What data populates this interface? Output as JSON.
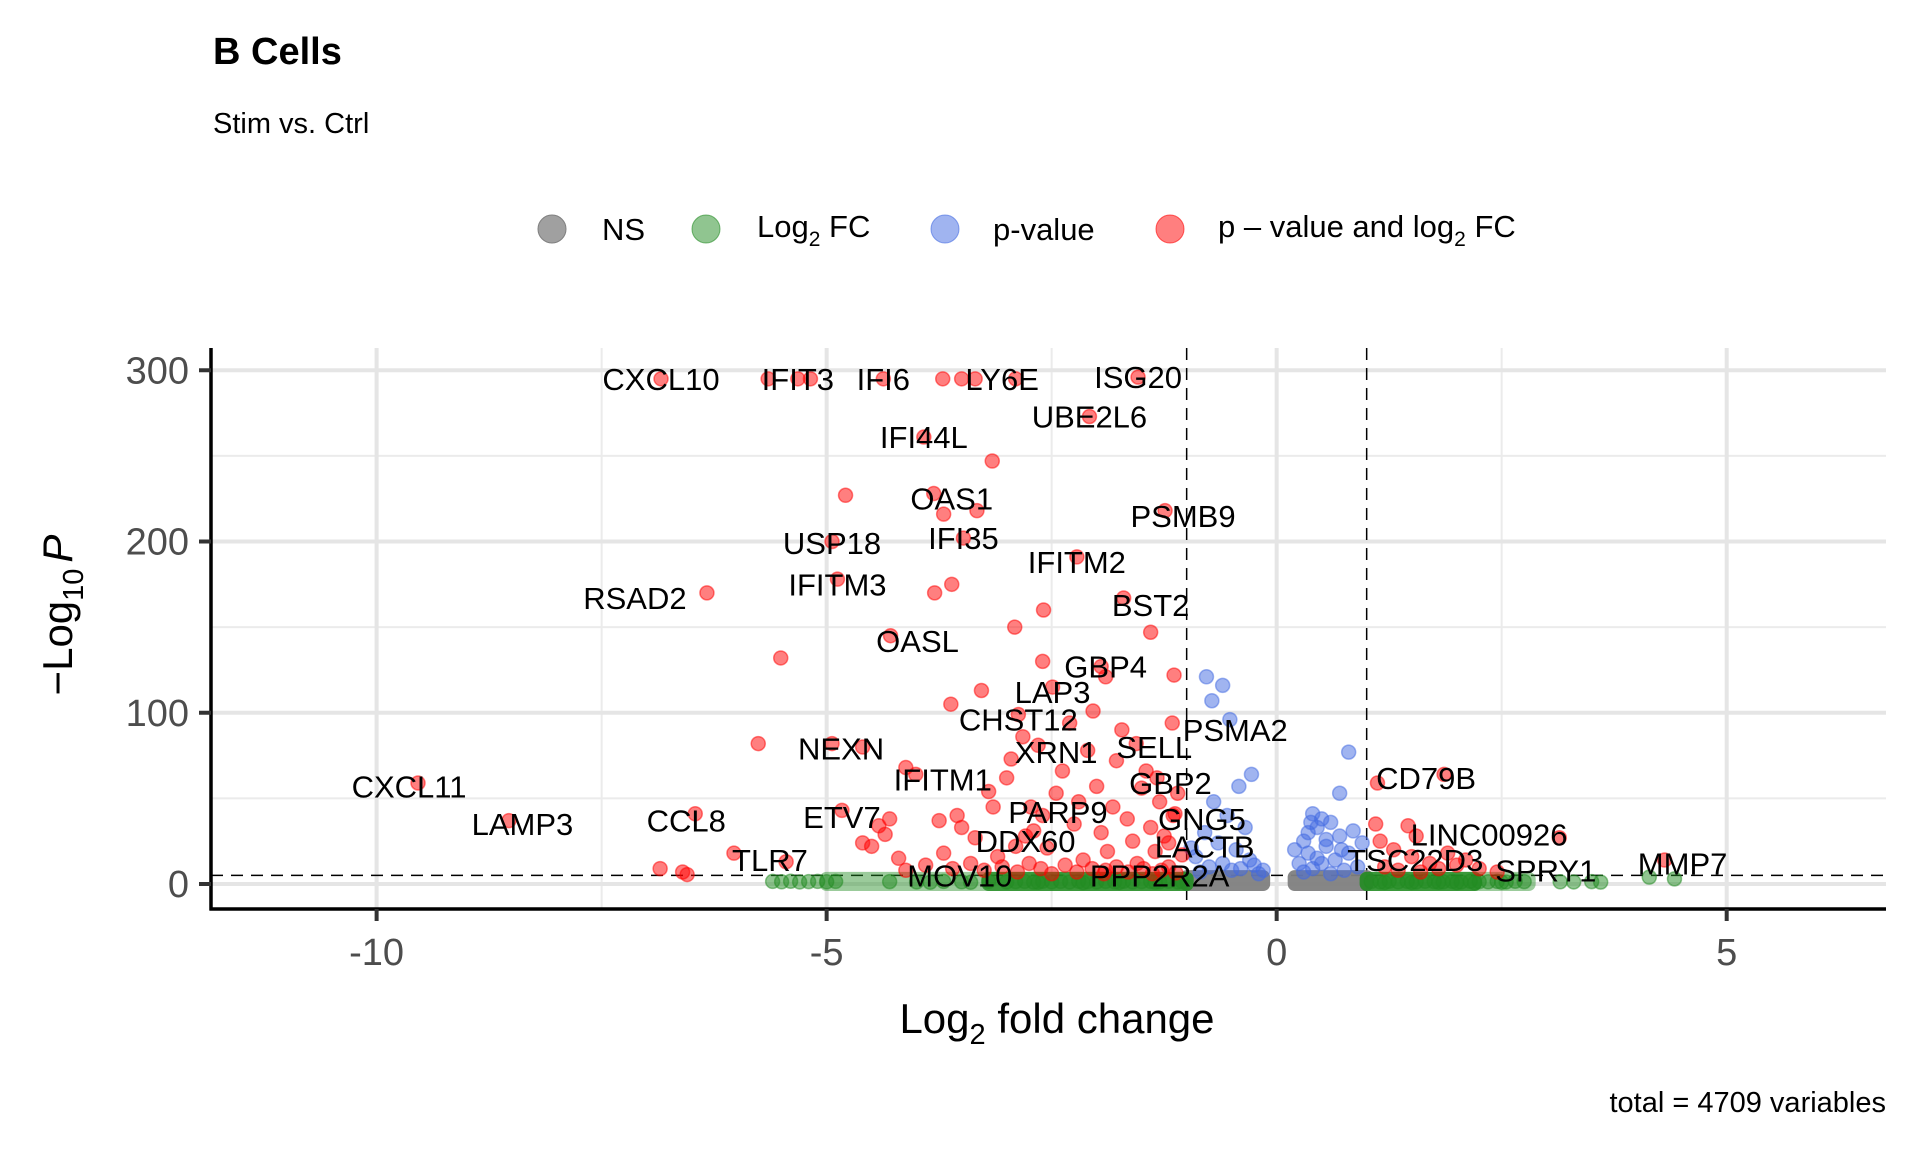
{
  "chart_data": {
    "type": "scatter",
    "title": "B Cells",
    "subtitle": "Stim vs. Ctrl",
    "caption": "total = 4709 variables",
    "xlabel": {
      "base": "Log",
      "sub": "2",
      "rest": " fold change"
    },
    "ylabel": {
      "prefix": "−Log",
      "sub": "10",
      "italic": "P"
    },
    "xlim": [
      -11.84,
      6.77
    ],
    "ylim": [
      -14.6,
      313
    ],
    "x_ticks": [
      -10,
      -5,
      0,
      5
    ],
    "x_tick_labels": [
      "-10",
      "-5",
      "0",
      "5"
    ],
    "y_ticks": [
      0,
      100,
      200,
      300
    ],
    "y_tick_labels": [
      "0",
      "100",
      "200",
      "300"
    ],
    "x_minor_grid": [
      -7.5,
      -2.5,
      2.5
    ],
    "y_minor_grid": [
      50,
      150,
      250
    ],
    "grid": true,
    "cutoffs": {
      "log2fc": [
        -1,
        1
      ],
      "neg_log10_p": 5
    },
    "legend_position": "top",
    "legend": [
      {
        "key": "NS",
        "label": "NS",
        "color": "#808080"
      },
      {
        "key": "FC",
        "label_base": "Log",
        "label_sub": "2",
        "label_rest": " FC",
        "color": "#228B22"
      },
      {
        "key": "P",
        "label": "p-value",
        "color": "#4169E1"
      },
      {
        "key": "FC_P",
        "label_pre": "p – value and log",
        "label_sub": "2",
        "label_rest": " FC",
        "color": "#FF0000"
      }
    ],
    "colors": {
      "NS": "#808080",
      "FC": "#228B22",
      "P": "#4169E1",
      "FC_P": "#FF0000"
    },
    "labeled_points": [
      {
        "gene": "CXCL10",
        "x": -6.84,
        "y": 295,
        "dx": 0,
        "dy": 0
      },
      {
        "gene": "IFIT3",
        "x": -5.32,
        "y": 295
      },
      {
        "gene": "IFI6",
        "x": -4.37,
        "y": 295
      },
      {
        "gene": "LY6E",
        "x": -3.35,
        "y": 295
      },
      {
        "gene": "ISG20",
        "x": -1.54,
        "y": 296
      },
      {
        "gene": "UBE2L6",
        "x": -2.08,
        "y": 273
      },
      {
        "gene": "IFI44L",
        "x": -3.92,
        "y": 261
      },
      {
        "gene": "OAS1",
        "x": -3.81,
        "y": 228
      },
      {
        "gene": "PSMB9",
        "x": -1.24,
        "y": 218
      },
      {
        "gene": "USP18",
        "x": -4.94,
        "y": 200
      },
      {
        "gene": "IFI35",
        "x": -3.48,
        "y": 202
      },
      {
        "gene": "IFITM2",
        "x": -2.22,
        "y": 191
      },
      {
        "gene": "IFITM3",
        "x": -4.88,
        "y": 178
      },
      {
        "gene": "RSAD2",
        "x": -6.33,
        "y": 170
      },
      {
        "gene": "BST2",
        "x": -1.7,
        "y": 167
      },
      {
        "gene": "OASL",
        "x": -4.29,
        "y": 145
      },
      {
        "gene": "GBP4",
        "x": -1.95,
        "y": 127
      },
      {
        "gene": "LAP3",
        "x": -2.49,
        "y": 115
      },
      {
        "gene": "CHST12",
        "x": -2.87,
        "y": 99
      },
      {
        "gene": "PSMA2",
        "x": -1.16,
        "y": 94
      },
      {
        "gene": "NEXN",
        "x": -4.94,
        "y": 82
      },
      {
        "gene": "XRN1",
        "x": -2.65,
        "y": 81
      },
      {
        "gene": "SELL",
        "x": -1.56,
        "y": 82
      },
      {
        "gene": "IFITM1",
        "x": -4.01,
        "y": 64
      },
      {
        "gene": "GBP2",
        "x": -1.33,
        "y": 62
      },
      {
        "gene": "CXCL11",
        "x": -9.54,
        "y": 59
      },
      {
        "gene": "PARP9",
        "x": -2.73,
        "y": 45
      },
      {
        "gene": "CCL8",
        "x": -6.46,
        "y": 41
      },
      {
        "gene": "ETV7",
        "x": -4.83,
        "y": 43
      },
      {
        "gene": "GNG5",
        "x": -1.13,
        "y": 41
      },
      {
        "gene": "LAMP3",
        "x": -8.53,
        "y": 37
      },
      {
        "gene": "DDX60",
        "x": -2.79,
        "y": 28
      },
      {
        "gene": "LACTB",
        "x": -1.2,
        "y": 24
      },
      {
        "gene": "TLR7",
        "x": -6.03,
        "y": 18
      },
      {
        "gene": "MOV10",
        "x": -4.12,
        "y": 8
      },
      {
        "gene": "PPP2R2A",
        "x": -1.9,
        "y": 8
      },
      {
        "gene": "CD79B",
        "x": 1.86,
        "y": 64
      },
      {
        "gene": "LINC00926",
        "x": 1.46,
        "y": 34
      },
      {
        "gene": "TSC22D3",
        "x": 0.64,
        "y": 16
      },
      {
        "gene": "SPRY1",
        "x": 2.59,
        "y": 12
      },
      {
        "gene": "MMP7",
        "x": 4.31,
        "y": 14
      }
    ],
    "label_offsets": {
      "CXCL10": [
        0,
        0
      ],
      "IFIT3": [
        0,
        0
      ],
      "IFI6": [
        0,
        0
      ],
      "LY6E": [
        0.3,
        0
      ],
      "ISG20": [
        0,
        0
      ],
      "UBE2L6": [
        0,
        0
      ],
      "IFI44L": [
        0,
        0
      ],
      "OAS1": [
        0.2,
        -3
      ],
      "PSMB9": [
        0.2,
        -3
      ],
      "USP18": [
        0,
        -1
      ],
      "IFI35": [
        0,
        0
      ],
      "IFITM2": [
        0,
        -3
      ],
      "IFITM3": [
        0,
        -3
      ],
      "RSAD2": [
        -0.8,
        -3
      ],
      "BST2": [
        0.3,
        -4
      ],
      "OASL": [
        0.3,
        -3
      ],
      "GBP4": [
        0.05,
        0
      ],
      "LAP3": [
        0,
        -3
      ],
      "CHST12": [
        0,
        -3
      ],
      "PSMA2": [
        0.7,
        -4
      ],
      "NEXN": [
        0.1,
        -3
      ],
      "XRN1": [
        0.2,
        -4
      ],
      "SELL": [
        0.2,
        -2
      ],
      "IFITM1": [
        0.3,
        -3
      ],
      "GBP2": [
        0.15,
        -3
      ],
      "CXCL11": [
        -0.1,
        -2
      ],
      "PARP9": [
        0.3,
        -3
      ],
      "CCL8": [
        -0.1,
        -4
      ],
      "ETV7": [
        0,
        -4
      ],
      "GNG5": [
        0.3,
        -3
      ],
      "LAMP3": [
        0.15,
        -2
      ],
      "DDX60": [
        0.0,
        -3
      ],
      "LACTB": [
        0.4,
        -2
      ],
      "TLR7": [
        0.4,
        -4
      ],
      "MOV10": [
        0.6,
        -3
      ],
      "PPP2R2A": [
        0.6,
        -3
      ],
      "CD79B": [
        -0.2,
        -2
      ],
      "LINC00926": [
        0.9,
        -5
      ],
      "TSC22D3": [
        0.9,
        -2
      ],
      "SPRY1": [
        0.4,
        -4
      ],
      "MMP7": [
        0.2,
        -2
      ]
    },
    "points_FC_P": [
      [
        -6.84,
        295
      ],
      [
        -5.65,
        295
      ],
      [
        -5.32,
        295
      ],
      [
        -5.18,
        295
      ],
      [
        -4.37,
        295
      ],
      [
        -3.71,
        295
      ],
      [
        -3.5,
        295
      ],
      [
        -3.35,
        295
      ],
      [
        -2.9,
        295
      ],
      [
        -1.54,
        296
      ],
      [
        -2.08,
        273
      ],
      [
        -3.92,
        261
      ],
      [
        -3.16,
        247
      ],
      [
        -4.79,
        227
      ],
      [
        -3.81,
        228
      ],
      [
        -3.7,
        216
      ],
      [
        -3.33,
        218
      ],
      [
        -1.24,
        218
      ],
      [
        -4.94,
        200
      ],
      [
        -3.48,
        202
      ],
      [
        -2.22,
        191
      ],
      [
        -4.88,
        178
      ],
      [
        -3.8,
        170
      ],
      [
        -3.61,
        175
      ],
      [
        -6.33,
        170
      ],
      [
        -2.59,
        160
      ],
      [
        -1.7,
        167
      ],
      [
        -1.4,
        147
      ],
      [
        -2.91,
        150
      ],
      [
        -4.29,
        145
      ],
      [
        -5.51,
        132
      ],
      [
        -1.95,
        127
      ],
      [
        -2.6,
        130
      ],
      [
        -1.9,
        121
      ],
      [
        -1.14,
        122
      ],
      [
        -2.49,
        115
      ],
      [
        -3.28,
        113
      ],
      [
        -3.62,
        105
      ],
      [
        -2.87,
        99
      ],
      [
        -2.04,
        101
      ],
      [
        -1.16,
        94
      ],
      [
        -4.94,
        82
      ],
      [
        -5.76,
        82
      ],
      [
        -4.6,
        80
      ],
      [
        -2.65,
        81
      ],
      [
        -1.56,
        82
      ],
      [
        -4.01,
        64
      ],
      [
        -4.12,
        68
      ],
      [
        -1.33,
        62
      ],
      [
        -2.73,
        45
      ],
      [
        -6.46,
        41
      ],
      [
        -4.83,
        43
      ],
      [
        -1.13,
        41
      ],
      [
        -2.79,
        28
      ],
      [
        -1.2,
        24
      ],
      [
        -6.03,
        18
      ],
      [
        -4.12,
        8
      ],
      [
        -1.9,
        8
      ],
      [
        -9.54,
        59
      ],
      [
        -8.53,
        37
      ],
      [
        -6.85,
        9
      ],
      [
        -6.6,
        7
      ],
      [
        -6.55,
        5.5
      ],
      [
        -5.45,
        13
      ],
      [
        -4.6,
        24
      ],
      [
        -4.42,
        34
      ],
      [
        -4.3,
        38
      ],
      [
        -4.35,
        29
      ],
      [
        -4.5,
        22
      ],
      [
        -3.75,
        37
      ],
      [
        -3.7,
        18
      ],
      [
        -3.5,
        33
      ],
      [
        -3.35,
        27
      ],
      [
        -3.2,
        54
      ],
      [
        -3.1,
        16
      ],
      [
        -3.0,
        62
      ],
      [
        -2.95,
        73
      ],
      [
        -2.82,
        86
      ],
      [
        -2.7,
        31
      ],
      [
        -2.6,
        40
      ],
      [
        -2.55,
        21
      ],
      [
        -2.45,
        53
      ],
      [
        -2.38,
        66
      ],
      [
        -2.3,
        94
      ],
      [
        -2.25,
        35
      ],
      [
        -2.2,
        48
      ],
      [
        -2.15,
        14
      ],
      [
        -2.1,
        78
      ],
      [
        -2.0,
        57
      ],
      [
        -1.95,
        30
      ],
      [
        -1.88,
        19
      ],
      [
        -1.82,
        45
      ],
      [
        -1.78,
        72
      ],
      [
        -1.72,
        90
      ],
      [
        -1.66,
        38
      ],
      [
        -1.6,
        25
      ],
      [
        -1.55,
        12
      ],
      [
        -1.5,
        56
      ],
      [
        -1.45,
        66
      ],
      [
        -1.4,
        33
      ],
      [
        -1.35,
        19
      ],
      [
        -1.3,
        48
      ],
      [
        -1.25,
        28
      ],
      [
        -1.2,
        10
      ],
      [
        -1.15,
        40
      ],
      [
        -1.1,
        53
      ],
      [
        -1.05,
        17
      ],
      [
        -3.9,
        11
      ],
      [
        -3.6,
        9
      ],
      [
        -3.4,
        12
      ],
      [
        -3.25,
        8
      ],
      [
        -3.05,
        10
      ],
      [
        -2.88,
        7
      ],
      [
        -2.75,
        12
      ],
      [
        -2.62,
        9
      ],
      [
        -2.5,
        6
      ],
      [
        -2.35,
        11
      ],
      [
        -2.22,
        7
      ],
      [
        -2.05,
        9
      ],
      [
        -1.92,
        6
      ],
      [
        -1.78,
        10
      ],
      [
        -1.65,
        7
      ],
      [
        -1.48,
        9
      ],
      [
        -1.38,
        6
      ],
      [
        -1.28,
        8
      ],
      [
        -1.12,
        6.5
      ],
      [
        -3.55,
        40
      ],
      [
        -3.15,
        45
      ],
      [
        -2.9,
        22
      ],
      [
        -4.2,
        15
      ],
      [
        1.12,
        59
      ],
      [
        1.86,
        64
      ],
      [
        3.14,
        27
      ],
      [
        1.46,
        34
      ],
      [
        1.1,
        35
      ],
      [
        1.3,
        20
      ],
      [
        1.5,
        16
      ],
      [
        1.7,
        12
      ],
      [
        1.9,
        18
      ],
      [
        2.1,
        14
      ],
      [
        2.25,
        9
      ],
      [
        2.45,
        7
      ],
      [
        1.2,
        10
      ],
      [
        1.35,
        8
      ],
      [
        1.6,
        7
      ],
      [
        1.8,
        9
      ],
      [
        2.0,
        11
      ],
      [
        4.31,
        14
      ],
      [
        1.15,
        25
      ],
      [
        1.55,
        28
      ]
    ],
    "points_P": [
      [
        -0.78,
        121
      ],
      [
        -0.6,
        116
      ],
      [
        -0.72,
        107
      ],
      [
        -0.52,
        96
      ],
      [
        -0.28,
        64
      ],
      [
        -0.42,
        57
      ],
      [
        -0.7,
        48
      ],
      [
        -0.55,
        40
      ],
      [
        -0.35,
        33
      ],
      [
        -0.8,
        30
      ],
      [
        -0.65,
        24
      ],
      [
        -0.45,
        20
      ],
      [
        -0.9,
        16
      ],
      [
        -0.3,
        14
      ],
      [
        -0.75,
        10
      ],
      [
        -0.5,
        8
      ],
      [
        -0.85,
        7
      ],
      [
        -0.6,
        12
      ],
      [
        -0.4,
        9
      ],
      [
        -0.95,
        21
      ],
      [
        -0.2,
        6
      ],
      [
        -0.25,
        11
      ],
      [
        -0.15,
        8
      ],
      [
        0.8,
        77
      ],
      [
        0.7,
        53
      ],
      [
        0.35,
        30
      ],
      [
        0.4,
        41
      ],
      [
        0.5,
        38
      ],
      [
        0.3,
        25
      ],
      [
        0.45,
        33
      ],
      [
        0.6,
        36
      ],
      [
        0.55,
        22
      ],
      [
        0.35,
        18
      ],
      [
        0.7,
        28
      ],
      [
        0.85,
        31
      ],
      [
        0.5,
        12
      ],
      [
        0.4,
        9
      ],
      [
        0.65,
        14
      ],
      [
        0.8,
        18
      ],
      [
        0.3,
        7
      ],
      [
        0.9,
        10
      ],
      [
        0.75,
        8
      ],
      [
        0.45,
        15
      ],
      [
        0.6,
        6
      ],
      [
        0.25,
        12
      ],
      [
        0.95,
        24
      ],
      [
        0.2,
        20
      ],
      [
        0.55,
        26
      ],
      [
        0.38,
        36
      ],
      [
        0.72,
        20
      ]
    ],
    "points_FC": [
      [
        -5.6,
        1.5
      ],
      [
        -5.5,
        1.3
      ],
      [
        -5.4,
        1.6
      ],
      [
        -5.3,
        1.2
      ],
      [
        -5.2,
        1.4
      ],
      [
        -5.1,
        1.5
      ],
      [
        -5.0,
        1.3
      ],
      [
        -4.9,
        1.5
      ],
      [
        -4.3,
        1.4
      ],
      [
        -4.0,
        1.2
      ],
      [
        -3.7,
        1.5
      ],
      [
        -3.5,
        1.3
      ],
      [
        -3.4,
        1.0
      ],
      [
        -3.2,
        1.6
      ],
      [
        -3.0,
        1.2
      ],
      [
        -2.9,
        1.4
      ],
      [
        -2.8,
        1.5
      ],
      [
        -2.7,
        1.1
      ],
      [
        -2.6,
        1.6
      ],
      [
        -2.5,
        1.3
      ],
      [
        -2.4,
        1.5
      ],
      [
        -2.3,
        1.2
      ],
      [
        -2.2,
        1.6
      ],
      [
        -2.1,
        1.4
      ],
      [
        -2.0,
        1.2
      ],
      [
        -1.9,
        1.5
      ],
      [
        -1.8,
        1.3
      ],
      [
        -1.7,
        1.6
      ],
      [
        -1.6,
        1.2
      ],
      [
        -1.5,
        1.4
      ],
      [
        -1.4,
        1.5
      ],
      [
        -1.3,
        1.3
      ],
      [
        -1.2,
        1.6
      ],
      [
        -1.1,
        1.2
      ],
      [
        -1.05,
        1.4
      ],
      [
        -2.65,
        1.0
      ],
      [
        -2.15,
        0.8
      ],
      [
        -1.75,
        0.9
      ],
      [
        -1.35,
        1.1
      ],
      [
        -3.85,
        1.0
      ],
      [
        1.05,
        1.4
      ],
      [
        1.15,
        1.2
      ],
      [
        1.25,
        1.6
      ],
      [
        1.35,
        1.3
      ],
      [
        1.45,
        1.5
      ],
      [
        1.55,
        1.2
      ],
      [
        1.65,
        1.6
      ],
      [
        1.75,
        1.4
      ],
      [
        1.85,
        1.3
      ],
      [
        1.95,
        1.5
      ],
      [
        2.05,
        1.2
      ],
      [
        2.15,
        1.6
      ],
      [
        2.25,
        1.4
      ],
      [
        2.35,
        1.3
      ],
      [
        2.45,
        1.5
      ],
      [
        2.55,
        1.2
      ],
      [
        2.65,
        1.6
      ],
      [
        2.75,
        1.4
      ],
      [
        3.15,
        1.3
      ],
      [
        3.3,
        1.2
      ],
      [
        3.5,
        1.4
      ],
      [
        3.6,
        1.1
      ],
      [
        4.14,
        4
      ],
      [
        4.42,
        3
      ],
      [
        1.5,
        0.9
      ],
      [
        2.0,
        0.8
      ],
      [
        2.5,
        1.0
      ],
      [
        1.2,
        0.9
      ],
      [
        1.8,
        1.0
      ],
      [
        2.2,
        0.7
      ]
    ],
    "ns_band": {
      "x_ranges": [
        [
          -1.0,
          -0.15
        ],
        [
          0.2,
          1.0
        ]
      ],
      "y": [
        0,
        4
      ]
    }
  }
}
